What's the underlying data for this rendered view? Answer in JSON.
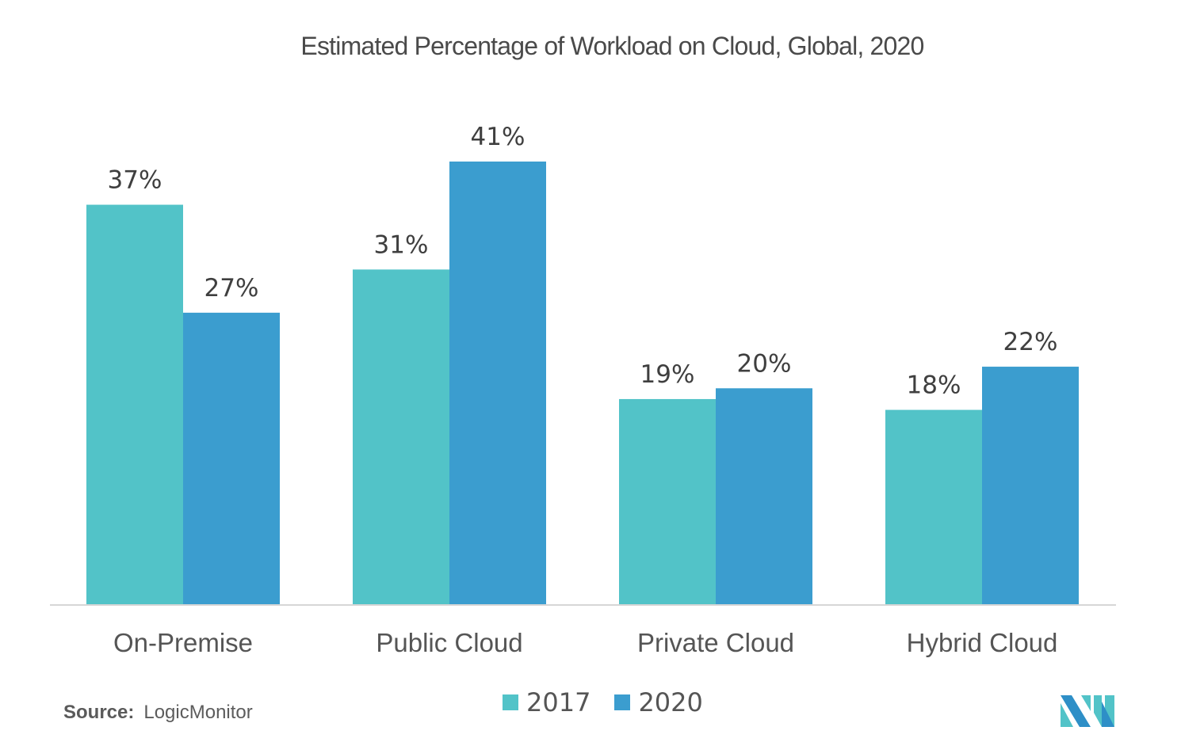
{
  "chart_data": {
    "type": "bar",
    "title": "Estimated Percentage of Workload on Cloud, Global, 2020",
    "categories": [
      "On-Premise",
      "Public Cloud",
      "Private Cloud",
      "Hybrid Cloud"
    ],
    "series": [
      {
        "name": "2017",
        "color": "#52c3c8",
        "values": [
          37,
          31,
          19,
          18
        ],
        "labels": [
          "37%",
          "31%",
          "19%",
          "18%"
        ]
      },
      {
        "name": "2020",
        "color": "#3b9dcf",
        "values": [
          27,
          41,
          20,
          22
        ],
        "labels": [
          "27%",
          "41%",
          "20%",
          "22%"
        ]
      }
    ],
    "xlabel": "",
    "ylabel": "",
    "ylim": [
      0,
      41
    ],
    "grid": false,
    "legend_position": "bottom-center"
  },
  "footer": {
    "source_label": "Source:",
    "source_value": "LogicMonitor",
    "logo_name": "mordor-intelligence-logo"
  }
}
